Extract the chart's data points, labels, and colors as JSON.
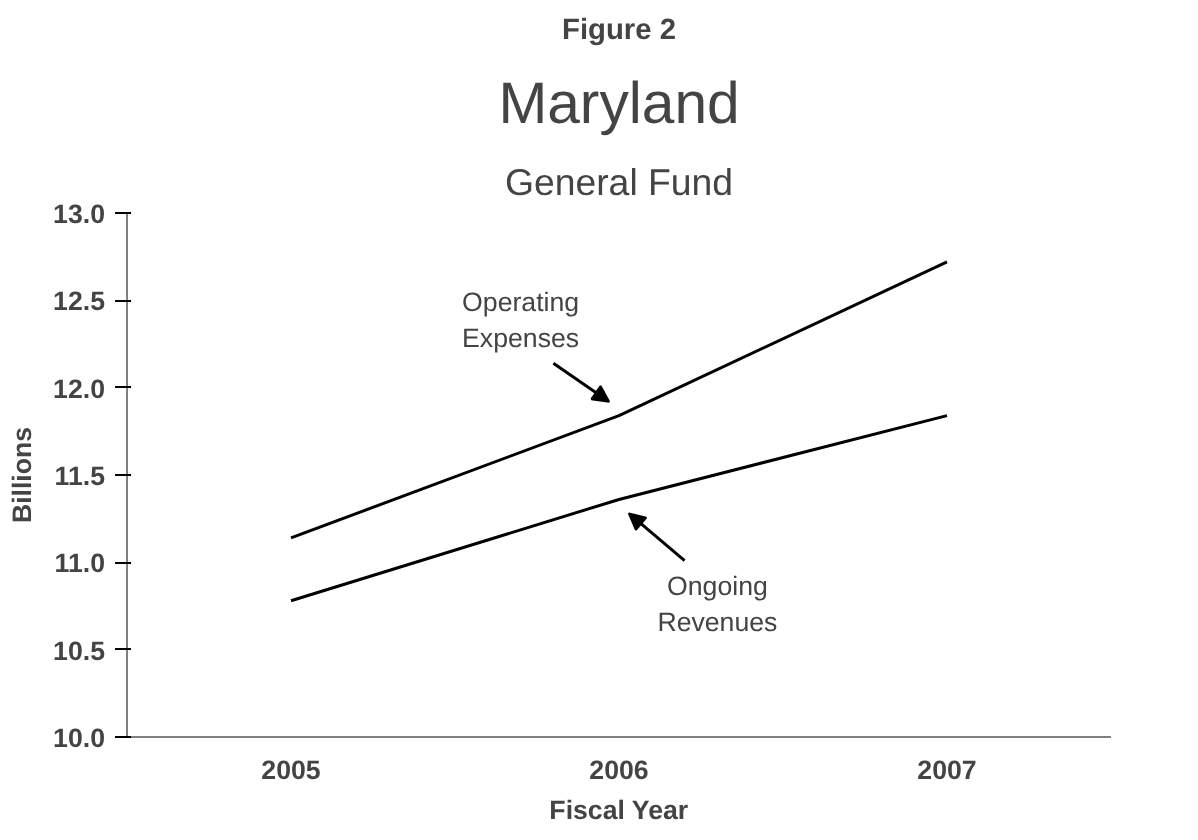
{
  "chart_data": {
    "type": "line",
    "title": "Maryland",
    "subtitle": "General Fund",
    "xlabel": "Fiscal Year",
    "ylabel": "Billions",
    "categories": [
      "2005",
      "2006",
      "2007"
    ],
    "series": [
      {
        "color": "#000000",
        "values": [
          11.14,
          11.84,
          12.72
        ]
      },
      {
        "color": "#000000",
        "values": [
          10.78,
          11.36,
          11.84
        ]
      }
    ],
    "ylim": [
      10,
      13
    ],
    "yticks": [
      {
        "value": 10,
        "label": "10.0"
      },
      {
        "value": 10.5,
        "label": "10.5"
      },
      {
        "value": 11,
        "label": "11.0"
      },
      {
        "value": 11.5,
        "label": "11.5"
      },
      {
        "value": 12,
        "label": "12.0"
      },
      {
        "value": 12.5,
        "label": "12.5"
      },
      {
        "value": 13,
        "label": "13.0"
      }
    ],
    "grid": false,
    "annotations": [
      "Figure 2",
      {
        "text": "Operating\nExpenses",
        "x": "2006",
        "y": 11.84
      },
      {
        "text": "Ongoing\nRevenues",
        "x": "2006",
        "y": 11.36
      }
    ]
  }
}
